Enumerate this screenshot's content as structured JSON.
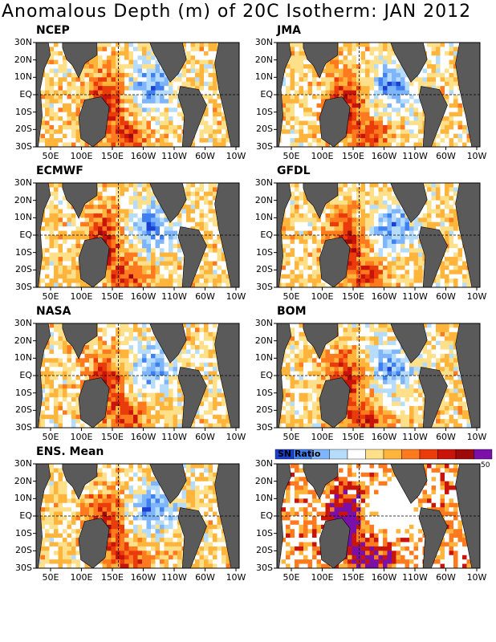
{
  "title": "Anomalous Depth (m) of 20C Isotherm: JAN 2012",
  "lat_labels": [
    "30N",
    "20N",
    "10N",
    "EQ",
    "10S",
    "20S",
    "30S"
  ],
  "lon_labels": [
    "50E",
    "100E",
    "150E",
    "160W",
    "110W",
    "60W",
    "10W"
  ],
  "panels": [
    {
      "name": "NCEP",
      "seed": 11
    },
    {
      "name": "JMA",
      "seed": 23
    },
    {
      "name": "ECMWF",
      "seed": 37
    },
    {
      "name": "GFDL",
      "seed": 41
    },
    {
      "name": "NASA",
      "seed": 53
    },
    {
      "name": "BOM",
      "seed": 67
    },
    {
      "name": "ENS. Mean",
      "seed": 79
    },
    {
      "name": "SN Ratio",
      "seed": 97
    }
  ],
  "colorbar": {
    "label": "SN Ratio",
    "end_label": "50",
    "colors": [
      "#1a3fd1",
      "#3f7ff0",
      "#7fb6fb",
      "#b6dcfb",
      "#ffffff",
      "#ffe08a",
      "#ffb43c",
      "#ff7a1e",
      "#ea3c0a",
      "#c8140a",
      "#9e0a0a",
      "#7a10a8"
    ]
  },
  "colors": {
    "land": "#5a5a5a",
    "background": "#ffffff",
    "equator_line": "#000000"
  }
}
